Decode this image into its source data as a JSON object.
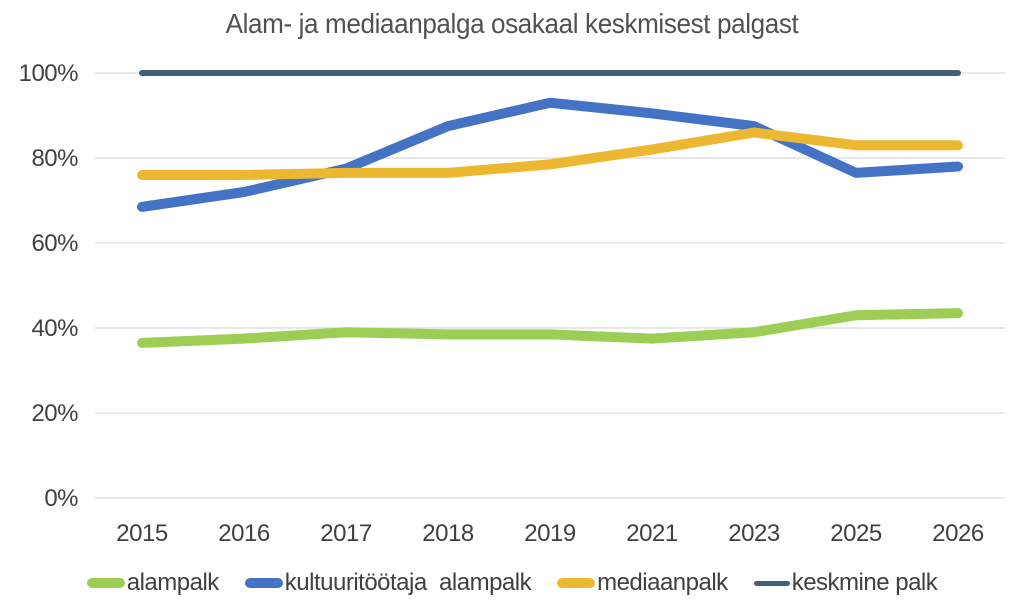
{
  "chart_data": {
    "type": "line",
    "title": "Alam- ja mediaanpalga osakaal keskmisest palgast",
    "categories": [
      "2015",
      "2016",
      "2017",
      "2018",
      "2019",
      "2021",
      "2023",
      "2025",
      "2026"
    ],
    "series": [
      {
        "name": "alampalk",
        "color": "#9CCE55",
        "line_width": 10,
        "values": [
          36.5,
          37.5,
          39,
          38.5,
          38.5,
          37.5,
          39,
          43,
          43.5
        ]
      },
      {
        "name": "kultuuritöötaja  alampalk",
        "color": "#4472C4",
        "line_width": 10,
        "values": [
          68.5,
          72,
          77.5,
          87.5,
          93,
          90.5,
          87.5,
          76.5,
          78
        ]
      },
      {
        "name": "mediaanpalk",
        "color": "#ECB831",
        "line_width": 10,
        "values": [
          76,
          76,
          76.5,
          76.5,
          78.5,
          82,
          86,
          83,
          83
        ]
      },
      {
        "name": "keskmine palk",
        "color": "#426078",
        "line_width": 6,
        "values": [
          100,
          100,
          100,
          100,
          100,
          100,
          100,
          100,
          100
        ]
      }
    ],
    "xlabel": "",
    "ylabel": "",
    "ylim": [
      0,
      100
    ],
    "yticks": [
      0,
      20,
      40,
      60,
      80,
      100
    ],
    "ytick_labels": [
      "0%",
      "20%",
      "40%",
      "60%",
      "80%",
      "100%"
    ],
    "grid": true,
    "legend_position": "bottom",
    "colors": {
      "grid": "#D9D9D9",
      "axis_text": "#404040",
      "title_text": "#515151",
      "background": "#FFFFFF"
    }
  }
}
